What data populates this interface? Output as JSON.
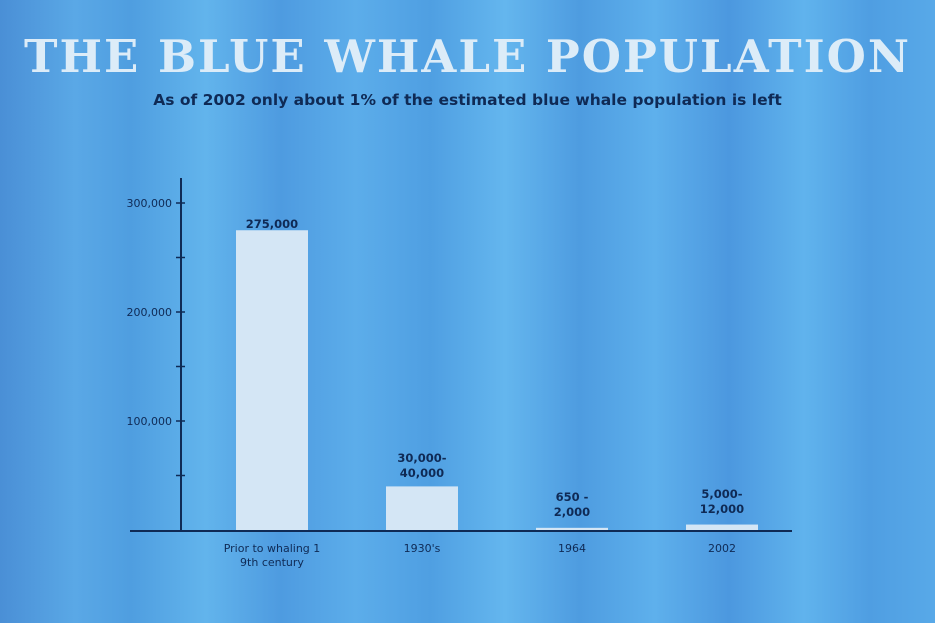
{
  "chart_data": {
    "type": "bar",
    "title": "THE BLUE WHALE POPULATION",
    "subtitle": "As of 2002 only about 1% of the estimated blue whale population is left",
    "categories": [
      "Prior to whaling 1 9th century",
      "1930's",
      "1964",
      "2002"
    ],
    "category_lines": [
      [
        "Prior to whaling 1",
        "9th century"
      ],
      [
        "1930's"
      ],
      [
        "1964"
      ],
      [
        "2002"
      ]
    ],
    "values": [
      275000,
      40000,
      2000,
      5000
    ],
    "data_labels": [
      [
        "275,000"
      ],
      [
        "30,000-",
        "40,000"
      ],
      [
        "650 -",
        "2,000"
      ],
      [
        "5,000-",
        "12,000"
      ]
    ],
    "yticks": [
      100000,
      200000,
      300000
    ],
    "ytick_labels": [
      "100,000",
      "200,000",
      "300,000"
    ],
    "ylim": [
      0,
      320000
    ],
    "xlabel": "",
    "ylabel": "",
    "grid": false,
    "colors": {
      "bar": "#d4e6f5",
      "axis": "#0f2a55",
      "text": "#0f2a55"
    }
  }
}
